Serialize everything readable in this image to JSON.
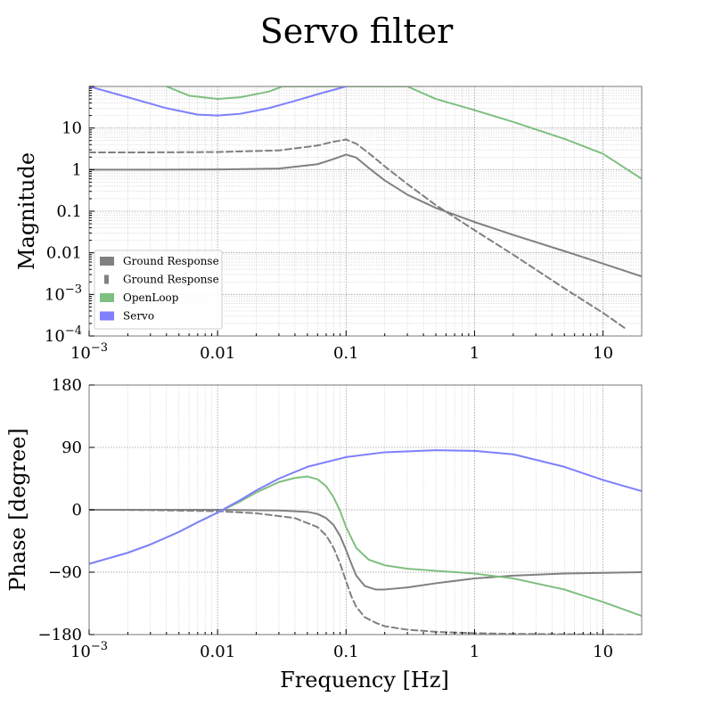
{
  "chart_data": {
    "type": "line",
    "title": "Servo filter",
    "xlabel": "Frequency [Hz]",
    "x_tick_labels": [
      "10^-3",
      "0.01",
      "0.1",
      "1",
      "10"
    ],
    "xlim": [
      0.001,
      20
    ],
    "xscale": "log",
    "grid": true,
    "panels": [
      {
        "ylabel": "Magnitude",
        "yscale": "log",
        "ylim": [
          0.0001,
          100
        ],
        "y_tick_labels": [
          "10^-4",
          "10^-3",
          "0.01",
          "0.1",
          "1",
          "10"
        ],
        "legend": {
          "placement": "lower-left",
          "entries": [
            {
              "label": "Ground Response",
              "color": "#808080"
            },
            {
              "label": "Ground Response",
              "color": "#808080"
            },
            {
              "label": "OpenLoop",
              "color": "#7fbf7f"
            },
            {
              "label": "Servo",
              "color": "#7f7fff"
            }
          ]
        },
        "series": [
          {
            "color": "#808080",
            "style": "solid",
            "x": [
              0.001,
              0.003,
              0.01,
              0.03,
              0.06,
              0.08,
              0.1,
              0.12,
              0.15,
              0.2,
              0.3,
              0.5,
              1,
              2,
              5,
              10,
              20
            ],
            "y": [
              1,
              1,
              1.01,
              1.06,
              1.35,
              1.8,
              2.3,
              1.95,
              1.1,
              0.55,
              0.25,
              0.12,
              0.055,
              0.027,
              0.011,
              0.0055,
              0.0027
            ]
          },
          {
            "color": "#808080",
            "style": "dashed",
            "x": [
              0.001,
              0.003,
              0.01,
              0.03,
              0.06,
              0.08,
              0.1,
              0.12,
              0.15,
              0.2,
              0.3,
              0.5,
              1,
              2,
              5,
              10,
              15
            ],
            "y": [
              2.6,
              2.6,
              2.65,
              2.9,
              3.8,
              4.7,
              5.3,
              4.2,
              2.5,
              1.2,
              0.45,
              0.14,
              0.035,
              0.009,
              0.0014,
              0.00036,
              0.00015
            ]
          },
          {
            "color": "#7fbf7f",
            "style": "solid",
            "x": [
              0.004,
              0.006,
              0.01,
              0.015,
              0.025,
              0.032,
              0.3,
              0.5,
              1,
              2,
              5,
              10,
              20
            ],
            "y": [
              100,
              60,
              50,
              55,
              75,
              100,
              100,
              50,
              27,
              14,
              5.5,
              2.4,
              0.6
            ]
          },
          {
            "color": "#7f7fff",
            "style": "solid",
            "x": [
              0.001,
              0.002,
              0.004,
              0.007,
              0.01,
              0.015,
              0.025,
              0.04,
              0.06,
              0.1
            ],
            "y": [
              100,
              55,
              30,
              21,
              20,
              22,
              30,
              45,
              65,
              100
            ]
          }
        ]
      },
      {
        "ylabel": "Phase [degree]",
        "yscale": "linear",
        "ylim": [
          -180,
          180
        ],
        "y_ticks": [
          -180,
          -90,
          0,
          90,
          180
        ],
        "y_tick_labels": [
          "−180",
          "−90",
          "0",
          "90",
          "180"
        ],
        "series": [
          {
            "color": "#808080",
            "style": "solid",
            "x": [
              0.001,
              0.01,
              0.03,
              0.05,
              0.06,
              0.07,
              0.08,
              0.09,
              0.1,
              0.11,
              0.12,
              0.14,
              0.17,
              0.2,
              0.3,
              0.5,
              1,
              2,
              5,
              10,
              20
            ],
            "y": [
              0,
              0,
              -1,
              -3,
              -6,
              -12,
              -22,
              -38,
              -58,
              -78,
              -95,
              -110,
              -115,
              -115,
              -112,
              -106,
              -99,
              -95,
              -92,
              -91,
              -90
            ]
          },
          {
            "color": "#808080",
            "style": "dashed",
            "x": [
              0.001,
              0.003,
              0.01,
              0.02,
              0.04,
              0.06,
              0.07,
              0.08,
              0.09,
              0.1,
              0.11,
              0.12,
              0.14,
              0.17,
              0.2,
              0.3,
              0.5,
              1,
              2,
              5,
              10,
              20
            ],
            "y": [
              0,
              -0.5,
              -2,
              -5,
              -12,
              -25,
              -37,
              -55,
              -78,
              -103,
              -125,
              -140,
              -155,
              -163,
              -168,
              -173,
              -176,
              -178,
              -179,
              -179.5,
              -180,
              -180
            ]
          },
          {
            "color": "#7fbf7f",
            "style": "solid",
            "x": [
              0.001,
              0.002,
              0.003,
              0.005,
              0.007,
              0.01,
              0.015,
              0.02,
              0.03,
              0.04,
              0.05,
              0.06,
              0.07,
              0.08,
              0.09,
              0.1,
              0.12,
              0.15,
              0.2,
              0.3,
              0.5,
              1,
              2,
              5,
              10,
              20
            ],
            "y": [
              -78,
              -62,
              -50,
              -32,
              -18,
              -4,
              12,
              25,
              40,
              46,
              48,
              44,
              34,
              18,
              -2,
              -25,
              -55,
              -72,
              -80,
              -85,
              -88,
              -92,
              -99,
              -115,
              -133,
              -153
            ]
          },
          {
            "color": "#7f7fff",
            "style": "solid",
            "x": [
              0.001,
              0.002,
              0.003,
              0.005,
              0.007,
              0.01,
              0.015,
              0.02,
              0.03,
              0.05,
              0.1,
              0.2,
              0.5,
              1,
              2,
              5,
              10,
              20
            ],
            "y": [
              -78,
              -62,
              -50,
              -32,
              -18,
              -4,
              14,
              28,
              45,
              62,
              76,
              83,
              86,
              85,
              80,
              62,
              43,
              27
            ]
          }
        ]
      }
    ]
  }
}
